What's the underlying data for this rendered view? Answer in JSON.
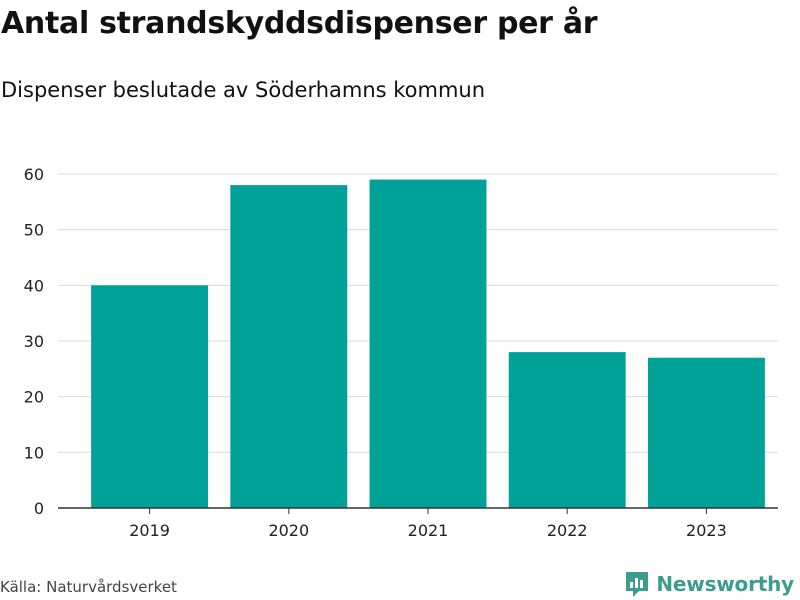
{
  "header": {
    "title": "Antal strandskyddsdispenser per år",
    "subtitle": "Dispenser beslutade av Söderhamns kommun"
  },
  "footer": {
    "source": "Källa: Naturvårdsverket",
    "brand": "Newsworthy",
    "brand_icon": "newsworthy-logo-icon"
  },
  "colors": {
    "bar": "#00a298",
    "grid": "#dcdcdc",
    "axis": "#333333",
    "brand": "#3d9b8f"
  },
  "chart_data": {
    "type": "bar",
    "title": "Antal strandskyddsdispenser per år",
    "subtitle": "Dispenser beslutade av Söderhamns kommun",
    "xlabel": "",
    "ylabel": "",
    "categories": [
      "2019",
      "2020",
      "2021",
      "2022",
      "2023"
    ],
    "values": [
      40,
      58,
      59,
      28,
      27
    ],
    "ylim": [
      0,
      60
    ],
    "yticks": [
      0,
      10,
      20,
      30,
      40,
      50,
      60
    ],
    "grid": true,
    "legend": "none"
  }
}
